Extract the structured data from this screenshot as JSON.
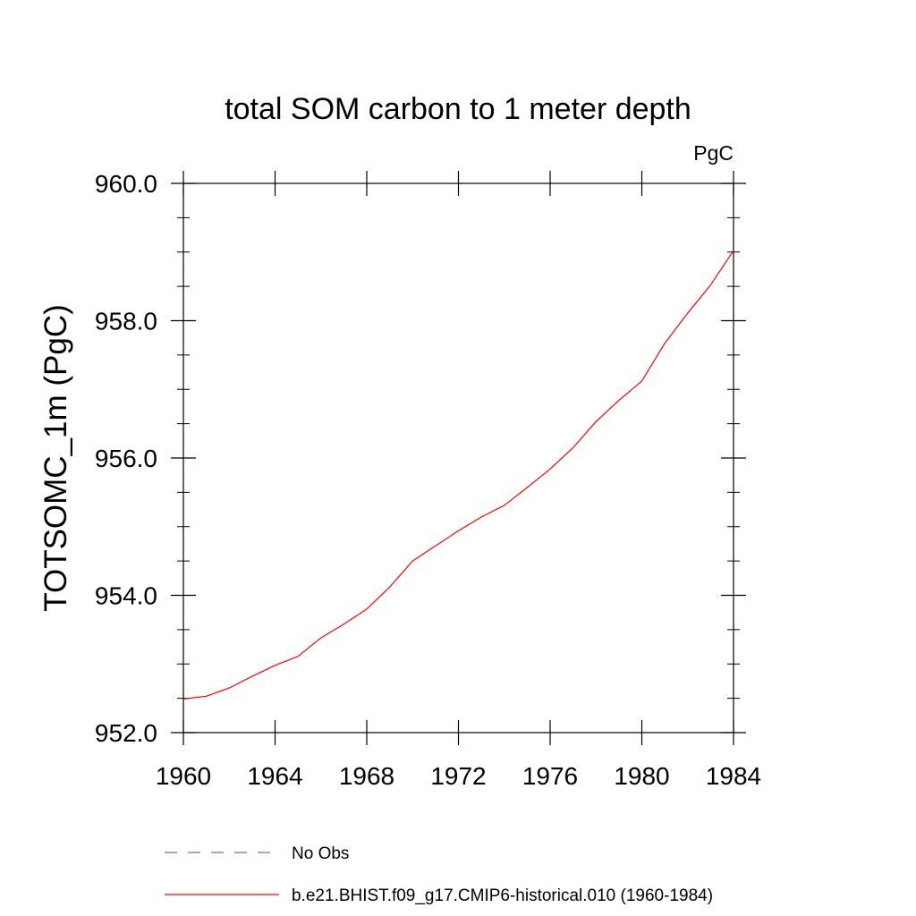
{
  "chart_data": {
    "type": "line",
    "title": "total SOM carbon to 1 meter depth",
    "units_label": "PgC",
    "ylabel": "TOTSOMC_1m  (PgC)",
    "xlabel": "",
    "xlim": [
      1960,
      1984
    ],
    "ylim": [
      952.0,
      960.0
    ],
    "x_ticks": [
      1960,
      1964,
      1968,
      1972,
      1976,
      1980,
      1984
    ],
    "x_tick_labels": [
      "1960",
      "1964",
      "1968",
      "1972",
      "1976",
      "1980",
      "1984"
    ],
    "y_ticks": [
      952,
      954,
      956,
      958,
      960
    ],
    "y_tick_labels": [
      "952.0",
      "954.0",
      "956.0",
      "958.0",
      "960.0"
    ],
    "grid": false,
    "legend_position": "bottom",
    "series": [
      {
        "name": "b.e21.BHIST.f09_g17.CMIP6-historical.010 (1960-1984)",
        "color": "#ff0000",
        "style": "solid",
        "x": [
          1960,
          1961,
          1962,
          1963,
          1964,
          1965,
          1966,
          1967,
          1968,
          1969,
          1970,
          1971,
          1972,
          1973,
          1974,
          1975,
          1976,
          1977,
          1978,
          1979,
          1980,
          1981,
          1982,
          1983,
          1984
        ],
        "y": [
          952.49,
          952.53,
          952.65,
          952.82,
          952.98,
          953.11,
          953.38,
          953.58,
          953.8,
          954.12,
          954.5,
          954.72,
          954.94,
          955.14,
          955.31,
          955.57,
          955.84,
          956.15,
          956.53,
          956.84,
          957.12,
          957.67,
          958.11,
          958.52,
          959.02
        ]
      }
    ],
    "legend": [
      {
        "label": "No Obs",
        "color": "#6c6cb8",
        "style": "dashed"
      },
      {
        "label": "b.e21.BHIST.f09_g17.CMIP6-historical.010 (1960-1984)",
        "color": "#ff0000",
        "style": "solid"
      }
    ]
  }
}
